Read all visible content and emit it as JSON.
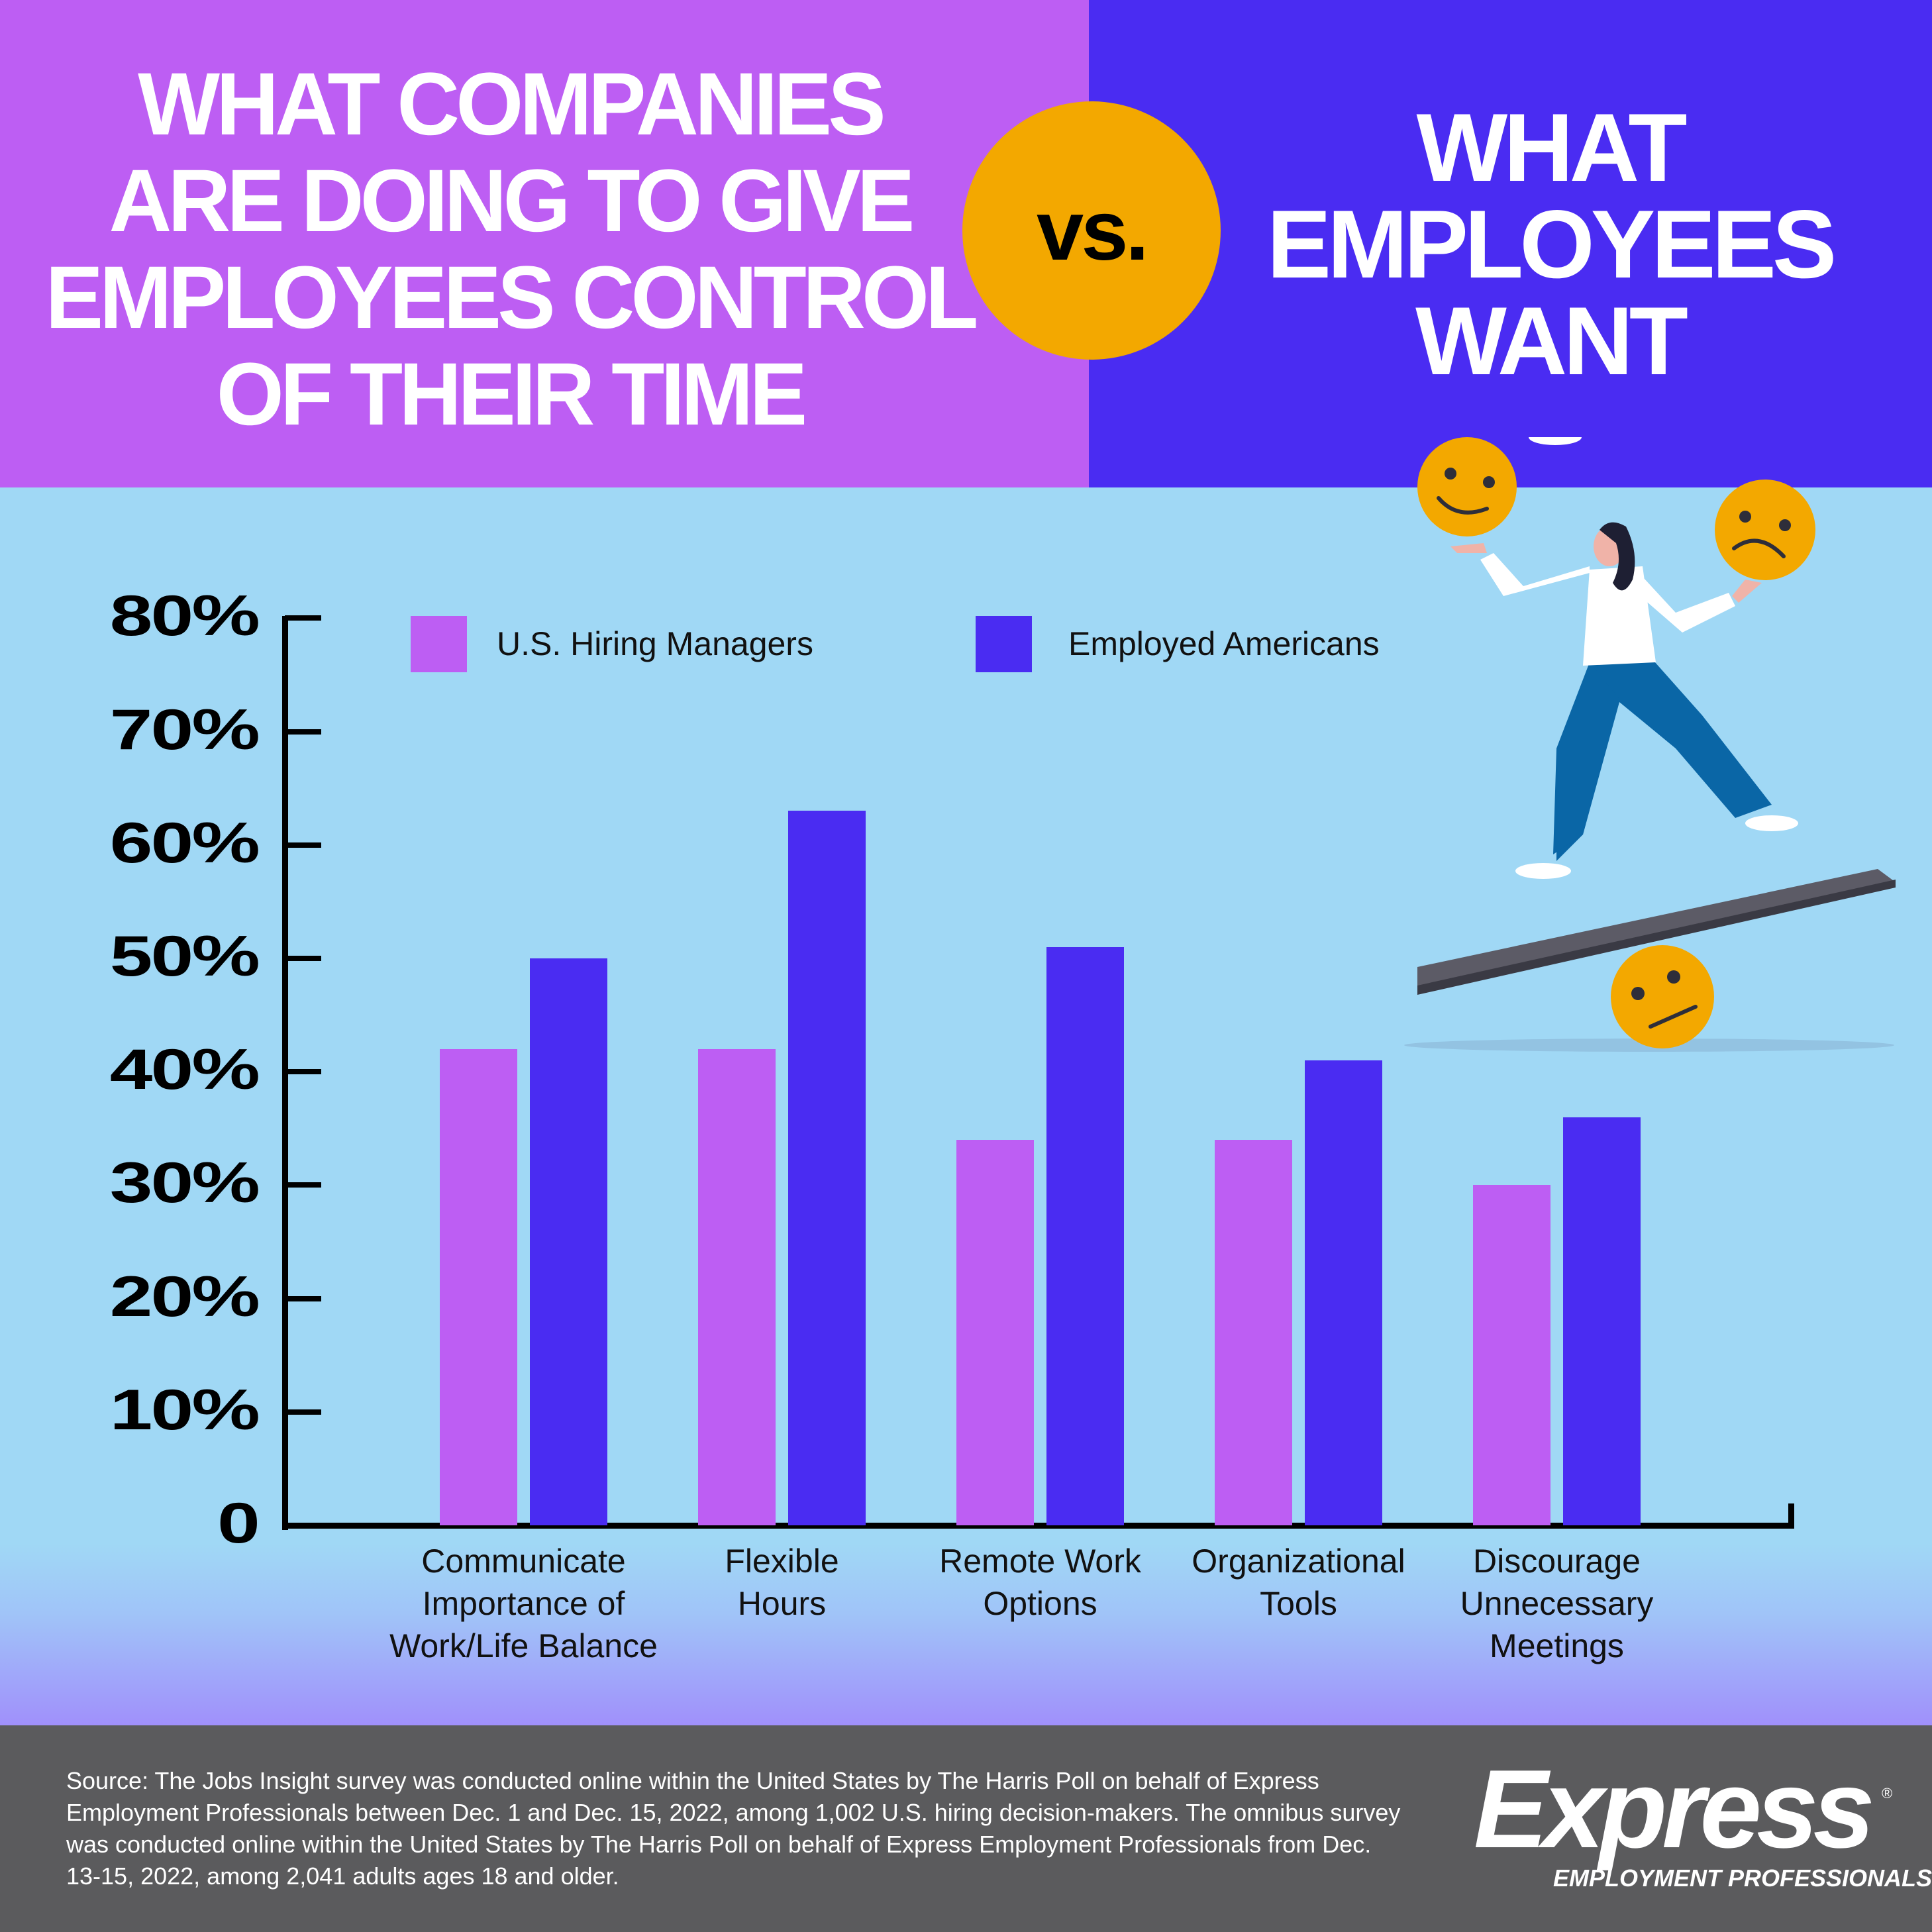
{
  "header": {
    "left_title": "WHAT COMPANIES\nARE DOING TO GIVE\nEMPLOYEES CONTROL\nOF THEIR TIME",
    "vs_label": "vs.",
    "right_title": "WHAT\nEMPLOYEES\nWANT",
    "colors": {
      "left_bg": "#bd5ef3",
      "right_bg": "#4a2cf2",
      "vs_circle": "#f3a800"
    }
  },
  "illustration": {
    "description": "woman balancing on seesaw board juggling emoji faces",
    "emojis": [
      "smiling-face",
      "frowning-face",
      "neutral-face"
    ]
  },
  "chart_data": {
    "type": "bar",
    "title": "What companies are doing to give employees control of their time vs. what employees want",
    "categories": [
      "Communicate Importance of Work/Life Balance",
      "Flexible Hours",
      "Remote Work Options",
      "Organizational Tools",
      "Discourage Unnecessary Meetings"
    ],
    "category_labels_display": [
      "Communicate\nImportance of\nWork/Life Balance",
      "Flexible\nHours",
      "Remote Work\nOptions",
      "Organizational\nTools",
      "Discourage\nUnnecessary\nMeetings"
    ],
    "series": [
      {
        "name": "U.S. Hiring Managers",
        "color": "#bd5ef3",
        "values": [
          42,
          42,
          34,
          34,
          30
        ]
      },
      {
        "name": "Employed Americans",
        "color": "#4a2cf2",
        "values": [
          50,
          63,
          51,
          41,
          36
        ]
      }
    ],
    "xlabel": "",
    "ylabel": "",
    "ylim": [
      0,
      80
    ],
    "yticks": [
      "0",
      "10%",
      "20%",
      "30%",
      "40%",
      "50%",
      "60%",
      "70%",
      "80%"
    ],
    "grid": false,
    "legend_position": "top"
  },
  "legend": {
    "items": [
      {
        "label": "U.S. Hiring Managers",
        "color": "#bd5ef3"
      },
      {
        "label": "Employed Americans",
        "color": "#4a2cf2"
      }
    ]
  },
  "footer": {
    "source_text": "Source: The Jobs Insight survey was conducted online within the United States by The Harris Poll on behalf of Express Employment Professionals between Dec. 1 and Dec. 15, 2022, among 1,002 U.S. hiring decision-makers. The omnibus survey was conducted online within the United States by The Harris Poll on behalf of Express Employment Professionals from Dec. 13-15, 2022, among 2,041 adults ages 18 and older.",
    "logo_word": "Express",
    "logo_sub": "EMPLOYMENT PROFESSIONALS",
    "logo_reg": "®"
  }
}
